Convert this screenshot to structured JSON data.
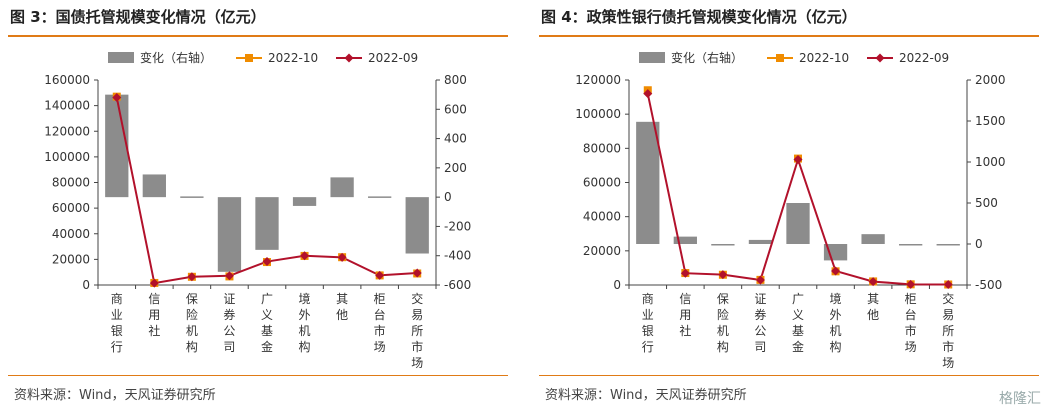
{
  "colors": {
    "bar": "#8c8c8c",
    "oct": "#f08c00",
    "sep": "#b2112b",
    "rule": "#e07b16"
  },
  "panels": [
    {
      "title": "图 3：国债托管规模变化情况（亿元）",
      "source": "资料来源：Wind，天风证券研究所"
    },
    {
      "title": "图 4：政策性银行债托管规模变化情况（亿元）",
      "source": "资料来源：Wind，天风证券研究所"
    }
  ],
  "watermark": "格隆汇",
  "chart_data": [
    {
      "type": "bar",
      "categories": [
        "商业银行",
        "信用社",
        "保险机构",
        "证券公司",
        "广义基金",
        "境外机构",
        "其他",
        "柜台市场",
        "交易所市场"
      ],
      "legend": [
        "变化（右轴）",
        "2022-10",
        "2022-09"
      ],
      "series": [
        {
          "name": "变化（右轴）",
          "axis": "right",
          "values": [
            700,
            155,
            5,
            -510,
            -360,
            -60,
            135,
            5,
            -385
          ]
        },
        {
          "name": "2022-10",
          "axis": "left",
          "values": [
            147000,
            1600,
            6400,
            6700,
            17900,
            22700,
            21700,
            7500,
            9000
          ]
        },
        {
          "name": "2022-09",
          "axis": "left",
          "values": [
            146300,
            1450,
            6400,
            7200,
            18300,
            22800,
            21600,
            7500,
            9400
          ]
        }
      ],
      "left_axis": {
        "min": 0,
        "max": 160000,
        "ticks": [
          "0",
          "20000",
          "40000",
          "60000",
          "80000",
          "100000",
          "120000",
          "140000",
          "160000"
        ]
      },
      "right_axis": {
        "min": -600,
        "max": 800,
        "ticks": [
          "-600",
          "-400",
          "-200",
          "0",
          "200",
          "400",
          "600",
          "800"
        ]
      },
      "legend_position": "top"
    },
    {
      "type": "bar",
      "categories": [
        "商业银行",
        "信用社",
        "保险机构",
        "证券公司",
        "广义基金",
        "境外机构",
        "其他",
        "柜台市场",
        "交易所市场"
      ],
      "legend": [
        "变化（右轴）",
        "2022-10",
        "2022-09"
      ],
      "series": [
        {
          "name": "变化（右轴）",
          "axis": "right",
          "values": [
            1490,
            90,
            -5,
            50,
            500,
            -200,
            120,
            -5,
            0
          ]
        },
        {
          "name": "2022-10",
          "axis": "left",
          "values": [
            114000,
            7000,
            6000,
            3000,
            74000,
            8000,
            2100,
            400,
            300
          ]
        },
        {
          "name": "2022-09",
          "axis": "left",
          "values": [
            112000,
            6900,
            6100,
            2900,
            73500,
            8200,
            2000,
            400,
            300
          ]
        }
      ],
      "left_axis": {
        "min": 0,
        "max": 120000,
        "ticks": [
          "0",
          "20000",
          "40000",
          "60000",
          "80000",
          "100000",
          "120000"
        ]
      },
      "right_axis": {
        "min": -500,
        "max": 2000,
        "ticks": [
          "-500",
          "0",
          "500",
          "1000",
          "1500",
          "2000"
        ]
      },
      "legend_position": "top"
    }
  ]
}
